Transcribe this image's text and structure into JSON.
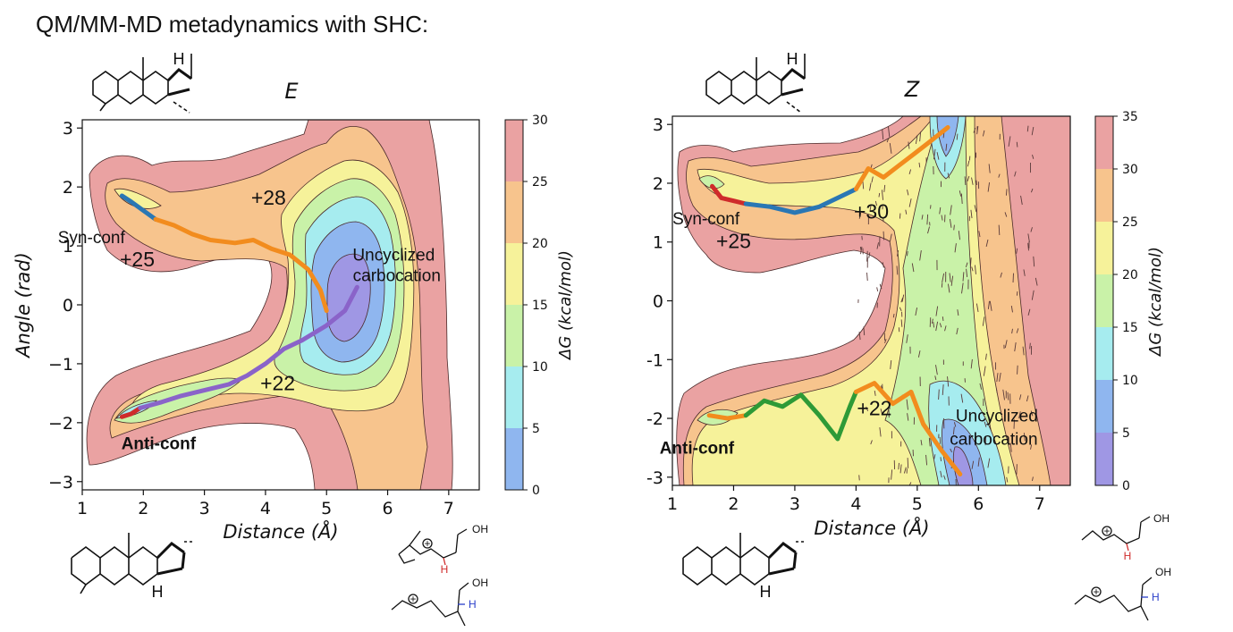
{
  "header": {
    "title": "QM/MM-MD metadynamics with SHC:"
  },
  "colors": {
    "levels": [
      "#9f97e4",
      "#8fb6ef",
      "#a6ecef",
      "#c9f2a8",
      "#f6f29a",
      "#f7c48d",
      "#eaa2a2"
    ],
    "purple_path": "#8a63c9",
    "orange_path": "#f28c1e",
    "blue_path": "#2a77b4",
    "red_path": "#cf2b2b",
    "green_path": "#2e9a37"
  },
  "chart_data": [
    {
      "type": "contour",
      "title": "E",
      "xlabel": "Distance (Å)",
      "ylabel": "Angle (rad)",
      "xlim": [
        1,
        7.5
      ],
      "ylim": [
        -3.14,
        3.14
      ],
      "xticks": [
        1,
        2,
        3,
        4,
        5,
        6,
        7
      ],
      "yticks": [
        3,
        2,
        1,
        0,
        -1,
        -2,
        -3
      ],
      "xtick_labels": [
        "1",
        "2",
        "3",
        "4",
        "5",
        "6",
        "7"
      ],
      "ytick_labels": [
        "3",
        "2",
        "1",
        "0",
        "−1",
        "−2",
        "−3"
      ],
      "colorbar": {
        "label": "ΔG (kcal/mol)",
        "range": [
          0,
          30
        ],
        "ticks": [
          30,
          25,
          20,
          15,
          10,
          5,
          0
        ],
        "tick_labels": [
          "30",
          "25",
          "20",
          "15",
          "10",
          "5",
          "0"
        ]
      },
      "annotations": [
        {
          "text": "+28",
          "x": 4.05,
          "y": 1.7
        },
        {
          "text": "Syn-conf",
          "x": 1.15,
          "y": 1.05
        },
        {
          "text": "+25",
          "x": 1.9,
          "y": 0.65
        },
        {
          "text": "Uncyclized",
          "x": 6.1,
          "y": 0.75
        },
        {
          "text": "carbocation",
          "x": 6.15,
          "y": 0.4
        },
        {
          "text": "+22",
          "x": 4.2,
          "y": -1.45
        },
        {
          "text": "Anti-conf",
          "x": 2.25,
          "y": -2.45
        }
      ],
      "paths": [
        {
          "name": "red",
          "points": [
            [
              1.65,
              -1.9
            ],
            [
              1.8,
              -1.85
            ],
            [
              1.95,
              -1.75
            ]
          ]
        },
        {
          "name": "purple",
          "points": [
            [
              1.95,
              -1.75
            ],
            [
              2.3,
              -1.65
            ],
            [
              2.6,
              -1.55
            ],
            [
              3.0,
              -1.45
            ],
            [
              3.4,
              -1.35
            ],
            [
              3.7,
              -1.2
            ],
            [
              4.0,
              -1.0
            ],
            [
              4.3,
              -0.75
            ],
            [
              4.6,
              -0.6
            ],
            [
              5.0,
              -0.35
            ],
            [
              5.3,
              -0.1
            ],
            [
              5.5,
              0.3
            ]
          ]
        },
        {
          "name": "blue",
          "points": [
            [
              1.65,
              1.85
            ],
            [
              1.8,
              1.75
            ],
            [
              2.0,
              1.6
            ],
            [
              2.2,
              1.45
            ]
          ]
        },
        {
          "name": "orange",
          "points": [
            [
              2.2,
              1.45
            ],
            [
              2.5,
              1.35
            ],
            [
              2.8,
              1.2
            ],
            [
              3.1,
              1.1
            ],
            [
              3.5,
              1.05
            ],
            [
              3.8,
              1.1
            ],
            [
              4.1,
              0.95
            ],
            [
              4.4,
              0.85
            ],
            [
              4.7,
              0.6
            ],
            [
              4.9,
              0.25
            ],
            [
              5.0,
              -0.1
            ]
          ]
        }
      ]
    },
    {
      "type": "contour",
      "title": "Z",
      "xlabel": "Distance (Å)",
      "ylabel": "",
      "xlim": [
        1,
        7.5
      ],
      "ylim": [
        -3.14,
        3.14
      ],
      "xticks": [
        1,
        2,
        3,
        4,
        5,
        6,
        7
      ],
      "yticks": [
        3,
        2,
        1,
        0,
        -1,
        -2,
        -3
      ],
      "xtick_labels": [
        "1",
        "2",
        "3",
        "4",
        "5",
        "6",
        "7"
      ],
      "ytick_labels": [
        "3",
        "2",
        "1",
        "0",
        "-1",
        "-2",
        "-3"
      ],
      "colorbar": {
        "label": "ΔG (kcal/mol)",
        "range": [
          0,
          35
        ],
        "ticks": [
          35,
          30,
          25,
          20,
          15,
          10,
          5,
          0
        ],
        "tick_labels": [
          "35",
          "30",
          "25",
          "20",
          "15",
          "10",
          "5",
          "0"
        ]
      },
      "annotations": [
        {
          "text": "Syn-conf",
          "x": 1.55,
          "y": 1.3
        },
        {
          "text": "+25",
          "x": 2.0,
          "y": 0.9
        },
        {
          "text": "+30",
          "x": 4.25,
          "y": 1.4
        },
        {
          "text": "+22",
          "x": 4.3,
          "y": -1.95
        },
        {
          "text": "Uncyclized",
          "x": 6.3,
          "y": -2.05
        },
        {
          "text": "carbocation",
          "x": 6.25,
          "y": -2.45
        },
        {
          "text": "Anti-conf",
          "x": 1.4,
          "y": -2.6
        }
      ],
      "paths": [
        {
          "name": "red",
          "points": [
            [
              1.65,
              1.95
            ],
            [
              1.8,
              1.75
            ],
            [
              2.0,
              1.7
            ],
            [
              2.2,
              1.65
            ]
          ]
        },
        {
          "name": "blue",
          "points": [
            [
              2.2,
              1.65
            ],
            [
              2.6,
              1.6
            ],
            [
              3.0,
              1.5
            ],
            [
              3.4,
              1.6
            ],
            [
              3.8,
              1.8
            ],
            [
              4.0,
              1.9
            ]
          ]
        },
        {
          "name": "orange",
          "points": [
            [
              4.0,
              1.9
            ],
            [
              4.2,
              2.25
            ],
            [
              4.45,
              2.1
            ],
            [
              4.7,
              2.3
            ],
            [
              4.95,
              2.5
            ],
            [
              5.2,
              2.7
            ],
            [
              5.5,
              2.95
            ]
          ]
        },
        {
          "name": "orange2",
          "points": [
            [
              1.6,
              -1.95
            ],
            [
              1.9,
              -2.0
            ],
            [
              2.2,
              -1.95
            ]
          ]
        },
        {
          "name": "green",
          "points": [
            [
              2.2,
              -1.95
            ],
            [
              2.5,
              -1.7
            ],
            [
              2.8,
              -1.8
            ],
            [
              3.1,
              -1.6
            ],
            [
              3.4,
              -1.95
            ],
            [
              3.7,
              -2.35
            ],
            [
              3.9,
              -1.8
            ],
            [
              4.0,
              -1.55
            ]
          ]
        },
        {
          "name": "orange3",
          "points": [
            [
              4.0,
              -1.55
            ],
            [
              4.3,
              -1.4
            ],
            [
              4.6,
              -1.75
            ],
            [
              4.9,
              -1.55
            ],
            [
              5.1,
              -2.1
            ],
            [
              5.4,
              -2.55
            ],
            [
              5.7,
              -2.95
            ]
          ]
        }
      ]
    }
  ],
  "molecules": {
    "top_left_H": "H",
    "bottom_left_H": "H",
    "top_right_H": "H",
    "bottom_right_H": "H",
    "oh_1": "OH",
    "oh_2": "OH",
    "oh_3": "OH",
    "oh_4": "OH",
    "plus": "+",
    "h_red_1": "H",
    "h_blue_1": "H",
    "h_red_2": "H",
    "h_blue_2": "H"
  }
}
